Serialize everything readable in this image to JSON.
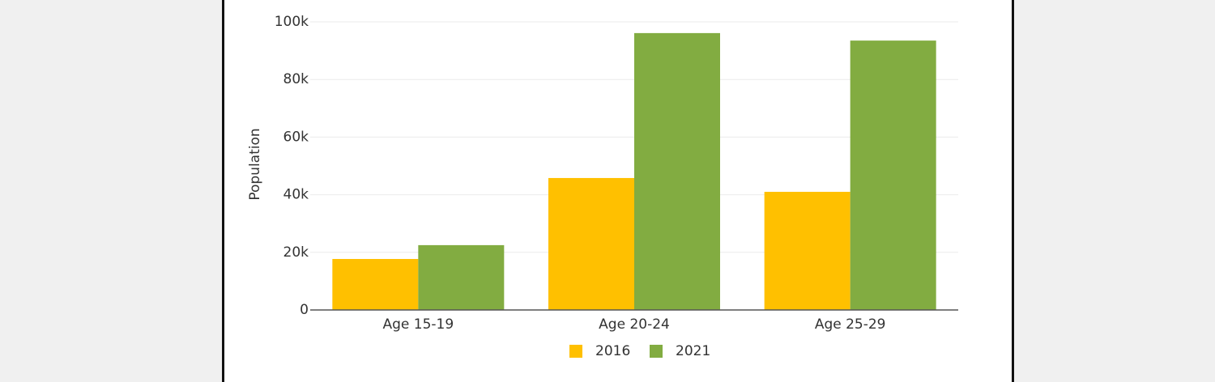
{
  "chart_data": {
    "type": "bar",
    "y_axis_label": "Population",
    "categories": [
      "Age 15-19",
      "Age 20-24",
      "Age 25-29"
    ],
    "series": [
      {
        "name": "2016",
        "color": "#ffc000",
        "values": [
          17700,
          45800,
          41000
        ]
      },
      {
        "name": "2021",
        "color": "#82ac41",
        "values": [
          22500,
          96100,
          93500
        ]
      }
    ],
    "ylim": [
      0,
      100000
    ],
    "yticks": [
      0,
      {
        "value": 20000,
        "label": "20k"
      },
      {
        "value": 40000,
        "label": "40k"
      },
      {
        "value": 60000,
        "label": "60k"
      },
      {
        "value": 80000,
        "label": "80k"
      },
      {
        "value": 100000,
        "label": "100k"
      }
    ],
    "grid": true,
    "legend": "bottom"
  }
}
